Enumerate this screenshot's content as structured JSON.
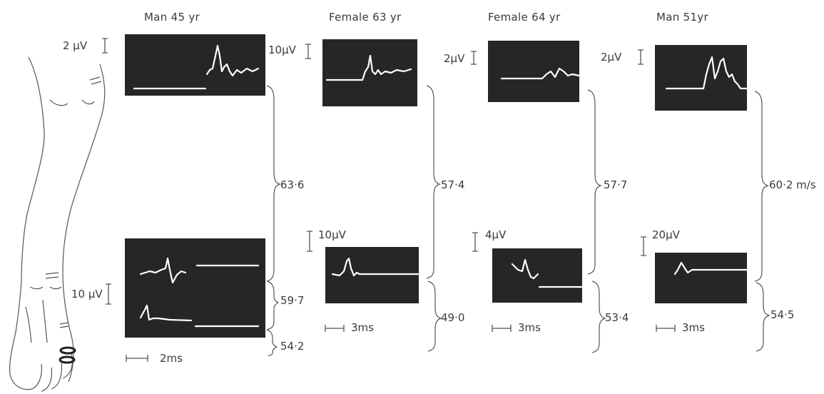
{
  "panels": [
    {
      "title": "Man 45 yr",
      "top_scale": "2 µV",
      "bottom_scale": "10 µV",
      "conduction": [
        "63·6",
        "59·7",
        "54·2"
      ],
      "time_scale": "2ms"
    },
    {
      "title": "Female 63 yr",
      "top_scale": "10µV",
      "bottom_scale": "10µV",
      "conduction": [
        "57·4",
        "49·0"
      ],
      "time_scale": "3ms"
    },
    {
      "title": "Female 64 yr",
      "top_scale": "2µV",
      "bottom_scale": "4µV",
      "conduction": [
        "57·7",
        "53·4"
      ],
      "time_scale": "3ms"
    },
    {
      "title": "Man 51yr",
      "top_scale": "2µV",
      "bottom_scale": "20µV",
      "conduction": [
        "60·2 m/s",
        "54·5"
      ],
      "time_scale": "3ms"
    }
  ],
  "colors": {
    "screen": "#262626",
    "ink": "#3a3a3a",
    "trace": "#ffffff"
  }
}
